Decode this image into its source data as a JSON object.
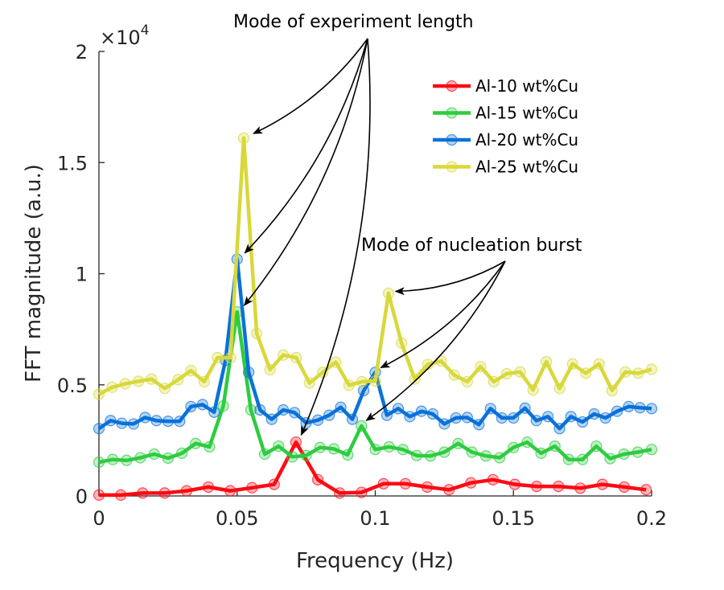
{
  "chart_data": {
    "type": "line",
    "title": "",
    "xlabel": "Frequency (Hz)",
    "ylabel": "FFT magnitude (a.u.)",
    "xlim": [
      0,
      0.2
    ],
    "ylim": [
      0,
      20000
    ],
    "y_multiplier_label": "×10",
    "y_multiplier_exponent": "4",
    "xticks": [
      0,
      0.05,
      0.1,
      0.15,
      0.2
    ],
    "xtick_labels": [
      "0",
      "0.05",
      "0.1",
      "0.15",
      "0.2"
    ],
    "yticks": [
      0,
      5000,
      10000,
      15000,
      20000
    ],
    "ytick_labels": [
      "0",
      "0.5",
      "1",
      "1.5",
      "2"
    ],
    "grid": false,
    "legend_position": "top-right",
    "series": [
      {
        "name": "Al-10 wt%Cu",
        "color": "#ff0a14",
        "x": [
          0,
          0.0079,
          0.0158,
          0.0238,
          0.0317,
          0.0396,
          0.0475,
          0.0554,
          0.0634,
          0.0713,
          0.0792,
          0.0871,
          0.095,
          0.103,
          0.1109,
          0.1188,
          0.1267,
          0.1346,
          0.1426,
          0.1505,
          0.1584,
          0.1663,
          0.1742,
          0.1822,
          0.1901,
          0.198
        ],
        "y": [
          40,
          40,
          130,
          130,
          230,
          400,
          230,
          370,
          520,
          2420,
          730,
          130,
          160,
          550,
          550,
          400,
          280,
          590,
          730,
          520,
          430,
          430,
          350,
          520,
          400,
          280
        ]
      },
      {
        "name": "Al-15 wt%Cu",
        "color": "#2ecc40",
        "x": [
          0,
          0.005,
          0.01,
          0.015,
          0.02,
          0.025,
          0.03,
          0.035,
          0.04,
          0.045,
          0.05,
          0.055,
          0.06,
          0.065,
          0.07,
          0.075,
          0.08,
          0.085,
          0.09,
          0.095,
          0.1,
          0.105,
          0.11,
          0.115,
          0.12,
          0.125,
          0.13,
          0.135,
          0.14,
          0.145,
          0.15,
          0.155,
          0.16,
          0.165,
          0.17,
          0.175,
          0.18,
          0.185,
          0.19,
          0.195,
          0.2
        ],
        "y": [
          1520,
          1640,
          1600,
          1720,
          1880,
          1700,
          1920,
          2360,
          2210,
          4050,
          8280,
          3870,
          1880,
          2240,
          1760,
          1820,
          2180,
          2120,
          1850,
          3150,
          2090,
          2210,
          2090,
          1820,
          1800,
          1970,
          2360,
          1970,
          1800,
          1720,
          2180,
          2420,
          1920,
          2240,
          1640,
          1640,
          2240,
          1680,
          1880,
          1970,
          2090
        ]
      },
      {
        "name": "Al-20 wt%Cu",
        "color": "#0a72d8",
        "x": [
          0,
          0.0042,
          0.0083,
          0.0125,
          0.0167,
          0.0208,
          0.025,
          0.0292,
          0.0333,
          0.0375,
          0.0417,
          0.0458,
          0.05,
          0.0542,
          0.0583,
          0.0625,
          0.0667,
          0.0708,
          0.075,
          0.0792,
          0.0833,
          0.0875,
          0.0917,
          0.0958,
          0.1,
          0.1042,
          0.1083,
          0.1125,
          0.1167,
          0.1208,
          0.125,
          0.1292,
          0.1333,
          0.1375,
          0.1417,
          0.1458,
          0.15,
          0.1542,
          0.1583,
          0.1625,
          0.1667,
          0.1708,
          0.175,
          0.1792,
          0.1833,
          0.1875,
          0.1917,
          0.1958,
          0.2
        ],
        "y": [
          3030,
          3390,
          3270,
          3240,
          3530,
          3390,
          3360,
          3360,
          4020,
          4110,
          3770,
          6100,
          10650,
          5560,
          3870,
          3450,
          3870,
          3750,
          3290,
          3410,
          3630,
          3990,
          3450,
          4740,
          5560,
          3630,
          3930,
          3570,
          3810,
          3690,
          3240,
          3510,
          3530,
          3210,
          3930,
          3510,
          3510,
          3950,
          3390,
          3570,
          3030,
          3570,
          3330,
          3690,
          3510,
          3810,
          4020,
          3970,
          3930
        ]
      },
      {
        "name": "Al-25 wt%Cu",
        "color": "#d8d83a",
        "x": [
          0,
          0.0048,
          0.0095,
          0.0143,
          0.019,
          0.0238,
          0.0286,
          0.0333,
          0.0381,
          0.0429,
          0.0476,
          0.0524,
          0.0571,
          0.0619,
          0.0667,
          0.0714,
          0.0762,
          0.081,
          0.0857,
          0.0905,
          0.0952,
          0.1,
          0.1048,
          0.1095,
          0.1143,
          0.119,
          0.1238,
          0.1286,
          0.1333,
          0.1381,
          0.1429,
          0.1476,
          0.1524,
          0.1571,
          0.1619,
          0.1667,
          0.1714,
          0.1762,
          0.181,
          0.1857,
          0.1905,
          0.1952,
          0.2
        ],
        "y": [
          4570,
          4890,
          5050,
          5160,
          5260,
          4840,
          5230,
          5640,
          5140,
          6220,
          6220,
          16100,
          7310,
          5680,
          6340,
          6220,
          5080,
          5560,
          6020,
          4980,
          5140,
          5170,
          9120,
          6880,
          5260,
          5920,
          6070,
          5440,
          5140,
          5820,
          5140,
          5500,
          5580,
          4770,
          6040,
          4840,
          5940,
          5520,
          5940,
          4740,
          5580,
          5520,
          5700
        ]
      }
    ],
    "annotations": [
      {
        "text": "Mode of experiment length",
        "targets": [
          [
            0.0524,
            16100
          ],
          [
            0.05,
            10650
          ],
          [
            0.05,
            8280
          ],
          [
            0.0713,
            2420
          ]
        ]
      },
      {
        "text": "Mode of nucleation burst",
        "targets": [
          [
            0.1048,
            9120
          ],
          [
            0.1,
            5560
          ],
          [
            0.095,
            3150
          ]
        ]
      }
    ]
  }
}
